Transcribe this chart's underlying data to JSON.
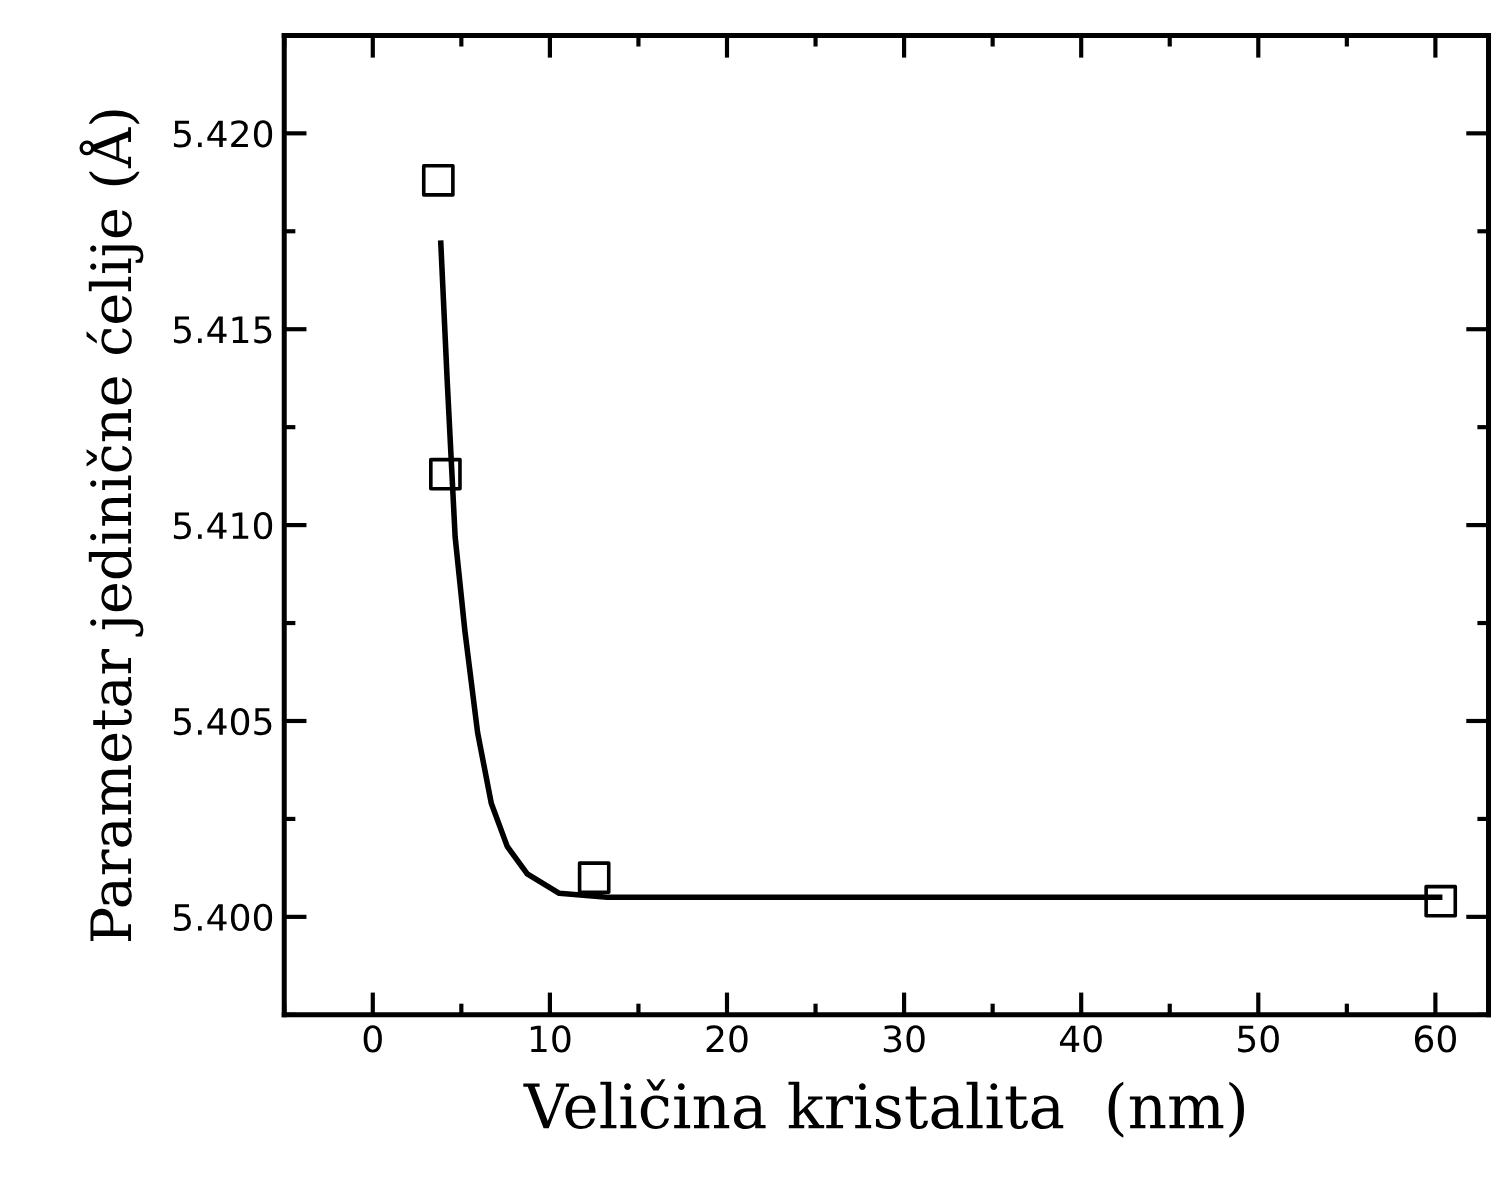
{
  "chart_data": {
    "type": "scatter",
    "xlabel": "Veličina kristalita  (nm)",
    "ylabel": "Parametar jedinične ćelije (Å)",
    "xlim": [
      -5,
      63
    ],
    "ylim": [
      5.3975,
      5.4225
    ],
    "xticks": [
      0,
      10,
      20,
      30,
      40,
      50,
      60
    ],
    "yticks": [
      {
        "value": 5.4,
        "label": "5.400"
      },
      {
        "value": 5.405,
        "label": "5.405"
      },
      {
        "value": 5.41,
        "label": "5.410"
      },
      {
        "value": 5.415,
        "label": "5.415"
      },
      {
        "value": 5.42,
        "label": "5.420"
      }
    ],
    "grid": false,
    "series": [
      {
        "marker": "square",
        "color": "#000000",
        "x": [
          3.7,
          4.1,
          12.5,
          60.3
        ],
        "values": [
          5.4188,
          5.4113,
          5.401,
          5.4004
        ]
      },
      {
        "type": "line",
        "marker": "none",
        "line_style": "solid",
        "color": "#000000",
        "x": [
          3.84,
          4.2,
          4.65,
          5.2,
          5.92,
          6.69,
          7.59,
          8.72,
          10.53,
          13.24,
          60.24
        ],
        "values": [
          5.4172,
          5.4137,
          5.4097,
          5.4073,
          5.4047,
          5.4029,
          5.4018,
          5.4011,
          5.4006,
          5.4005,
          5.4005
        ]
      }
    ]
  }
}
